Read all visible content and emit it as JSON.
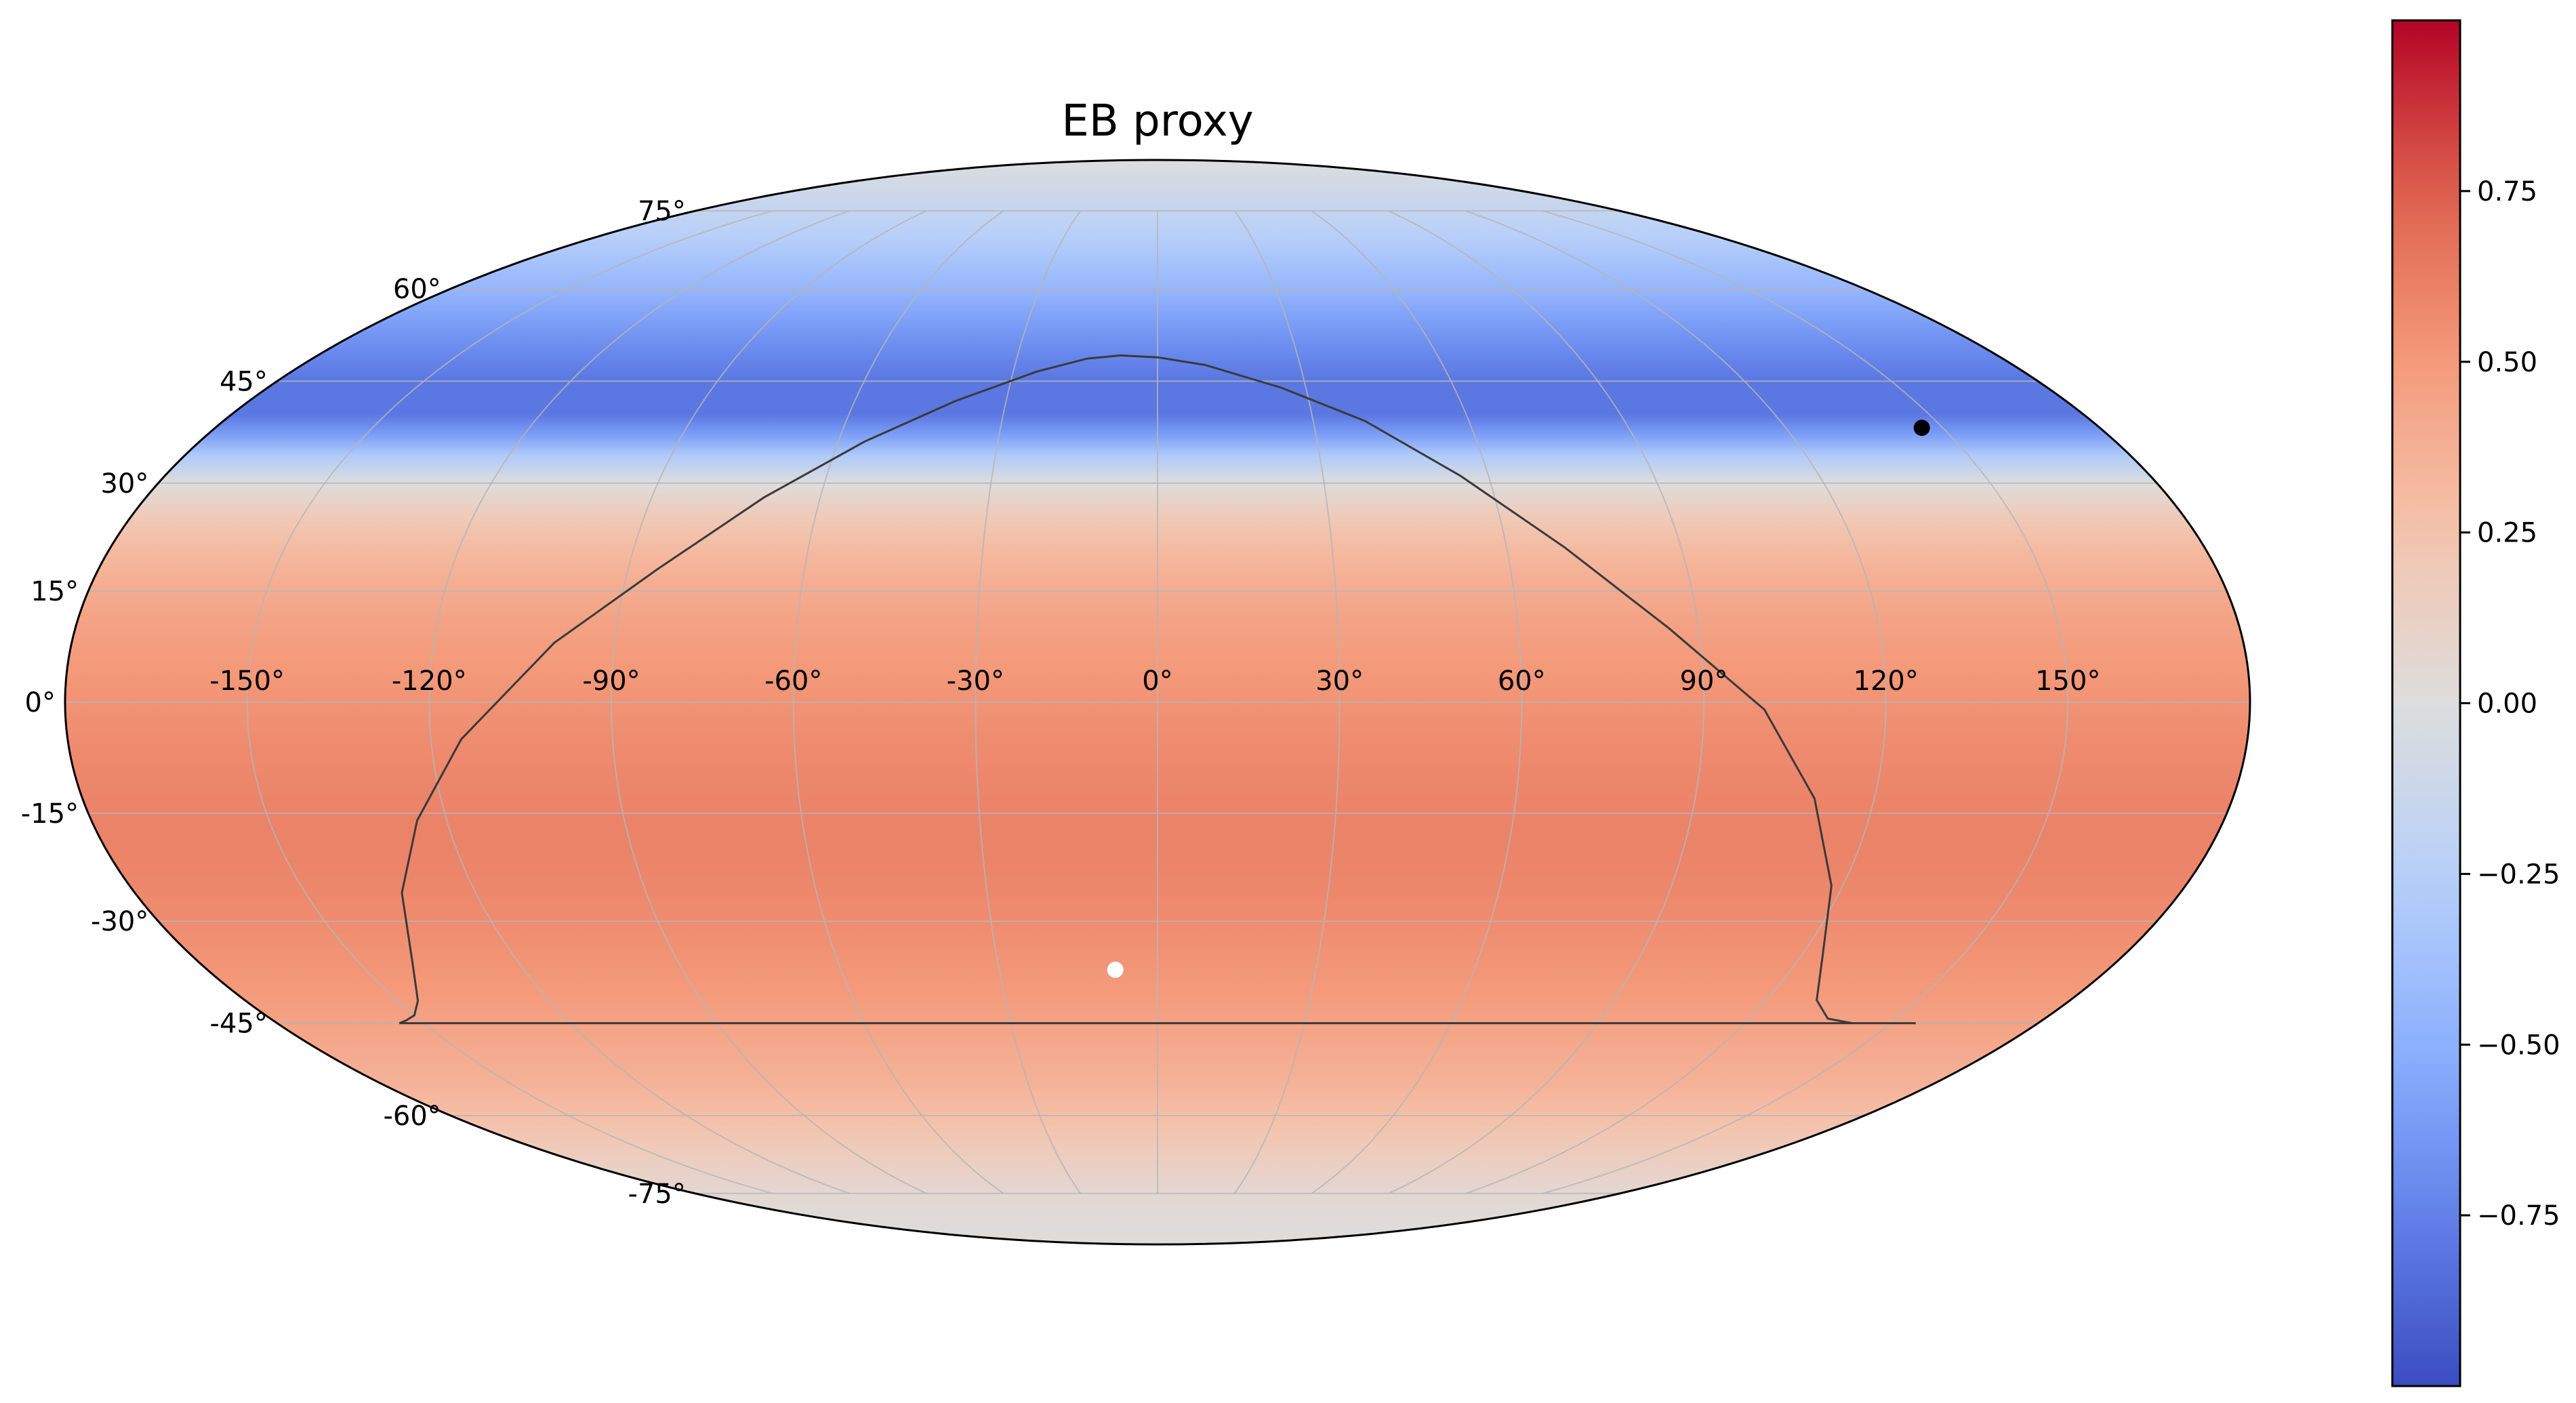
{
  "chart_data": {
    "type": "heatmap",
    "projection": "mollweide",
    "title": "EB proxy",
    "grid": true,
    "longitude_ticks": [
      -150,
      -120,
      -90,
      -60,
      -30,
      0,
      30,
      60,
      90,
      120,
      150
    ],
    "longitude_tick_labels": [
      "-150°",
      "-120°",
      "-90°",
      "-60°",
      "-30°",
      "0°",
      "30°",
      "60°",
      "90°",
      "120°",
      "150°"
    ],
    "latitude_ticks": [
      -75,
      -60,
      -45,
      -30,
      -15,
      0,
      15,
      30,
      45,
      60,
      75
    ],
    "latitude_tick_labels": [
      "-75°",
      "-60°",
      "-45°",
      "-30°",
      "-15°",
      "0°",
      "15°",
      "30°",
      "45°",
      "60°",
      "75°"
    ],
    "field_profile": {
      "latitude": [
        90,
        80,
        70,
        60,
        55,
        50,
        45,
        40,
        37,
        34,
        30,
        25,
        20,
        15,
        10,
        5,
        0,
        -5,
        -10,
        -15,
        -20,
        -25,
        -30,
        -35,
        -40,
        -45,
        -50,
        -55,
        -60,
        -65,
        -70,
        -75,
        -80,
        -90
      ],
      "value": [
        0.0,
        -0.1,
        -0.25,
        -0.45,
        -0.58,
        -0.7,
        -0.8,
        -0.8,
        -0.6,
        -0.3,
        0.0,
        0.2,
        0.32,
        0.4,
        0.46,
        0.5,
        0.53,
        0.56,
        0.58,
        0.6,
        0.6,
        0.58,
        0.56,
        0.53,
        0.5,
        0.45,
        0.4,
        0.35,
        0.28,
        0.2,
        0.12,
        0.06,
        0.03,
        0.0
      ]
    },
    "boundary_curve": {
      "lon": [
        -155,
        -153,
        -150,
        -146,
        -140,
        -133,
        -125,
        -115,
        -100,
        -85,
        -70,
        -55,
        -40,
        -25,
        -15,
        -8,
        0,
        10,
        25,
        40,
        55,
        70,
        85,
        100,
        110,
        118,
        124,
        130,
        136,
        142,
        148,
        155
      ],
      "lat": [
        -45,
        -44.6,
        -43.8,
        -41.6,
        -36,
        -26,
        -16,
        -5,
        8,
        18,
        28,
        36,
        42,
        46.5,
        48.5,
        49,
        48.7,
        47.5,
        44,
        39,
        31,
        21,
        10,
        -1,
        -13,
        -25,
        -35,
        -41.5,
        -44.3,
        -45,
        -45,
        -45
      ]
    },
    "markers": [
      {
        "lon": 146,
        "lat": 38,
        "color": "#000000"
      },
      {
        "lon": -8,
        "lat": -37,
        "color": "#ffffff"
      }
    ],
    "colorbar": {
      "colormap": "coolwarm",
      "range": [
        -1,
        1
      ],
      "ticks": [
        -0.75,
        -0.5,
        -0.25,
        0.0,
        0.25,
        0.5,
        0.75
      ],
      "tick_labels": [
        "−0.75",
        "−0.50",
        "−0.25",
        "0.00",
        "0.25",
        "0.50",
        "0.75"
      ]
    }
  }
}
